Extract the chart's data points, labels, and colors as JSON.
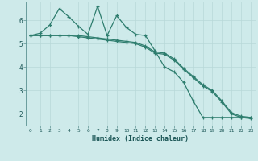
{
  "xlabel": "Humidex (Indice chaleur)",
  "background_color": "#ceeaea",
  "grid_color": "#b8d8d8",
  "line_color": "#2e7d6e",
  "xlim": [
    -0.5,
    23.5
  ],
  "ylim": [
    1.5,
    6.8
  ],
  "xticks": [
    0,
    1,
    2,
    3,
    4,
    5,
    6,
    7,
    8,
    9,
    10,
    11,
    12,
    13,
    14,
    15,
    16,
    17,
    18,
    19,
    20,
    21,
    22,
    23
  ],
  "yticks": [
    2,
    3,
    4,
    5,
    6
  ],
  "line1_x": [
    0,
    1,
    2,
    3,
    4,
    5,
    6,
    7,
    8,
    9,
    10,
    11,
    12,
    13,
    14,
    15,
    16,
    17,
    18,
    19,
    20,
    21,
    22,
    23
  ],
  "line1_y": [
    5.35,
    5.45,
    5.8,
    6.5,
    6.15,
    5.75,
    5.4,
    6.6,
    5.35,
    6.2,
    5.7,
    5.4,
    5.35,
    4.7,
    4.0,
    3.8,
    3.35,
    2.55,
    1.85,
    1.85,
    1.85,
    1.85,
    1.85,
    1.85
  ],
  "line2_x": [
    0,
    1,
    2,
    3,
    4,
    5,
    6,
    7,
    8,
    9,
    10,
    11,
    12,
    13,
    14,
    15,
    16,
    17,
    18,
    19,
    20,
    21,
    22,
    23
  ],
  "line2_y": [
    5.35,
    5.35,
    5.35,
    5.35,
    5.35,
    5.3,
    5.25,
    5.2,
    5.15,
    5.1,
    5.05,
    5.0,
    4.85,
    4.6,
    4.55,
    4.3,
    3.9,
    3.55,
    3.2,
    2.95,
    2.5,
    2.0,
    1.85,
    1.8
  ],
  "line3_x": [
    0,
    1,
    2,
    3,
    4,
    5,
    6,
    7,
    8,
    9,
    10,
    11,
    12,
    13,
    14,
    15,
    16,
    17,
    18,
    19,
    20,
    21,
    22,
    23
  ],
  "line3_y": [
    5.35,
    5.35,
    5.35,
    5.35,
    5.35,
    5.35,
    5.3,
    5.25,
    5.2,
    5.15,
    5.1,
    5.05,
    4.9,
    4.65,
    4.6,
    4.35,
    3.95,
    3.6,
    3.25,
    3.0,
    2.55,
    2.05,
    1.9,
    1.85
  ]
}
